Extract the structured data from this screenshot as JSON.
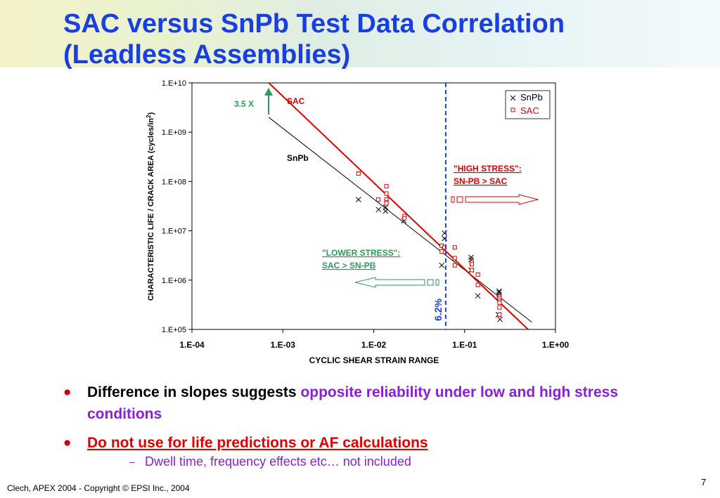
{
  "slide": {
    "title_line1": "SAC versus SnPb Test Data Correlation",
    "title_line2": "(Leadless Assemblies)",
    "bullets": [
      {
        "text1": "Difference in slopes suggests ",
        "text2": "opposite reliability under low and high stress conditions"
      },
      {
        "text1": "Do not use for life predictions or AF calculations"
      }
    ],
    "sub_bullet": "Dwell time, frequency effects etc… not included",
    "footer": "Clech, APEX 2004  -  Copyright © EPSI Inc., 2004",
    "page_number": "7"
  },
  "colors": {
    "title": "#1a3fe0",
    "sac": "#e00000",
    "snpb": "#000000",
    "green": "#2e9a5a",
    "blue_dashed": "#1a3fe0",
    "purple": "#8a1fd6"
  },
  "chart_data": {
    "type": "scatter",
    "xscale": "log",
    "yscale": "log",
    "xlim": [
      0.0001,
      1
    ],
    "ylim": [
      100000,
      10000000000
    ],
    "xlabel": "CYCLIC SHEAR STRAIN RANGE",
    "ylabel": "CHARACTERISTIC LIFE / CRACK AREA (cycles/in",
    "ylabel_sup": "2",
    "ylabel_close": ")",
    "x_ticks": [
      "1.E-04",
      "1.E-03",
      "1.E-02",
      "1.E-01",
      "1.E+00"
    ],
    "y_ticks": [
      "1.E+05",
      "1.E+06",
      "1.E+07",
      "1.E+08",
      "1.E+09",
      "1.E+10"
    ],
    "legend": {
      "position": "top-right",
      "entries": [
        "SnPb",
        "SAC"
      ]
    },
    "series": [
      {
        "name": "SnPb",
        "marker": "x",
        "color": "#000000",
        "points": [
          [
            0.0068,
            43000000
          ],
          [
            0.0113,
            27000000
          ],
          [
            0.0135,
            25000000
          ],
          [
            0.0135,
            30000000
          ],
          [
            0.0215,
            16000000
          ],
          [
            0.056,
            2000000
          ],
          [
            0.06,
            9000000
          ],
          [
            0.06,
            7000000
          ],
          [
            0.118,
            2900000
          ],
          [
            0.118,
            2600000
          ],
          [
            0.118,
            1600000
          ],
          [
            0.14,
            480000
          ],
          [
            0.24,
            600000
          ],
          [
            0.24,
            560000
          ],
          [
            0.24,
            500000
          ],
          [
            0.24,
            440000
          ],
          [
            0.235,
            200000
          ],
          [
            0.245,
            160000
          ]
        ],
        "fit": [
          [
            0.0007,
            2000000000
          ],
          [
            0.55,
            140000
          ]
        ]
      },
      {
        "name": "SAC",
        "marker": "square",
        "color": "#e00000",
        "points": [
          [
            0.0068,
            145000000
          ],
          [
            0.0112,
            43000000
          ],
          [
            0.0138,
            80000000
          ],
          [
            0.0138,
            57000000
          ],
          [
            0.0138,
            43000000
          ],
          [
            0.0138,
            38000000
          ],
          [
            0.0138,
            36000000
          ],
          [
            0.0218,
            20000000
          ],
          [
            0.0218,
            18000000
          ],
          [
            0.056,
            5000000
          ],
          [
            0.056,
            3800000
          ],
          [
            0.06,
            4600000
          ],
          [
            0.078,
            4600000
          ],
          [
            0.078,
            2800000
          ],
          [
            0.078,
            2000000
          ],
          [
            0.12,
            2300000
          ],
          [
            0.12,
            2100000
          ],
          [
            0.12,
            1600000
          ],
          [
            0.14,
            1300000
          ],
          [
            0.14,
            800000
          ],
          [
            0.242,
            460000
          ],
          [
            0.242,
            420000
          ],
          [
            0.242,
            380000
          ],
          [
            0.242,
            350000
          ],
          [
            0.242,
            280000
          ],
          [
            0.242,
            200000
          ]
        ],
        "fit": [
          [
            0.0007,
            10000000000
          ],
          [
            0.5,
            100000
          ]
        ]
      }
    ],
    "vertical_line": {
      "x": 0.062,
      "style": "dashed",
      "label": "6.2%"
    },
    "annotations": {
      "sac_label": "SAC",
      "snpb_label": "SnPb",
      "ratio_label": "3.5 X",
      "high_stress_line1": "\"HIGH STRESS\":",
      "high_stress_line2": "SN-PB > SAC",
      "lower_stress_line1": "\"LOWER STRESS\":",
      "lower_stress_line2": "SAC > SN-PB"
    }
  }
}
